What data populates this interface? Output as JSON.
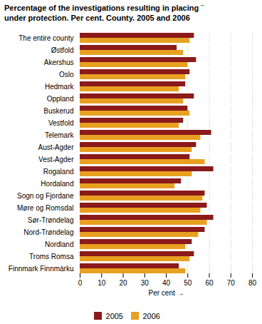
{
  "chart_data": {
    "type": "bar",
    "orientation": "horizontal",
    "title": "Percentage of the investigations resulting in placing ¨\nunder protection. Per cent. County. 2005 and 2006",
    "categories": [
      "The entire county",
      "Østfold",
      "Akershus",
      "Oslo",
      "Hedmark",
      "Oppland",
      "Buskerud",
      "Vestfold",
      "Telemark",
      "Aust-Agder",
      "Vest-Agder",
      "Rogaland",
      "Hordaland",
      "Sogn og Fjordane",
      "Møre og Romsdal",
      "Sør-Trøndelag",
      "Nord-Trøndelag",
      "Nordland",
      "Troms Romsa",
      "Finnmark Finnmárku"
    ],
    "series": [
      {
        "name": "2005",
        "color": "#8B1A1A",
        "values": [
          53,
          45,
          54,
          51,
          49,
          53,
          50,
          48,
          61,
          54,
          51,
          62,
          47,
          58,
          59,
          62,
          58,
          52,
          53,
          46
        ]
      },
      {
        "name": "2006",
        "color": "#E8A020",
        "values": [
          51,
          48,
          50,
          49,
          46,
          48,
          51,
          46,
          56,
          52,
          58,
          52,
          44,
          57,
          56,
          59,
          55,
          49,
          51,
          49
        ]
      }
    ],
    "xlabel": "Per cent",
    "xlim": [
      0,
      80
    ],
    "xticks": [
      0,
      10,
      20,
      30,
      40,
      50,
      60,
      70,
      80
    ],
    "grid": true,
    "legend": "bottom"
  }
}
